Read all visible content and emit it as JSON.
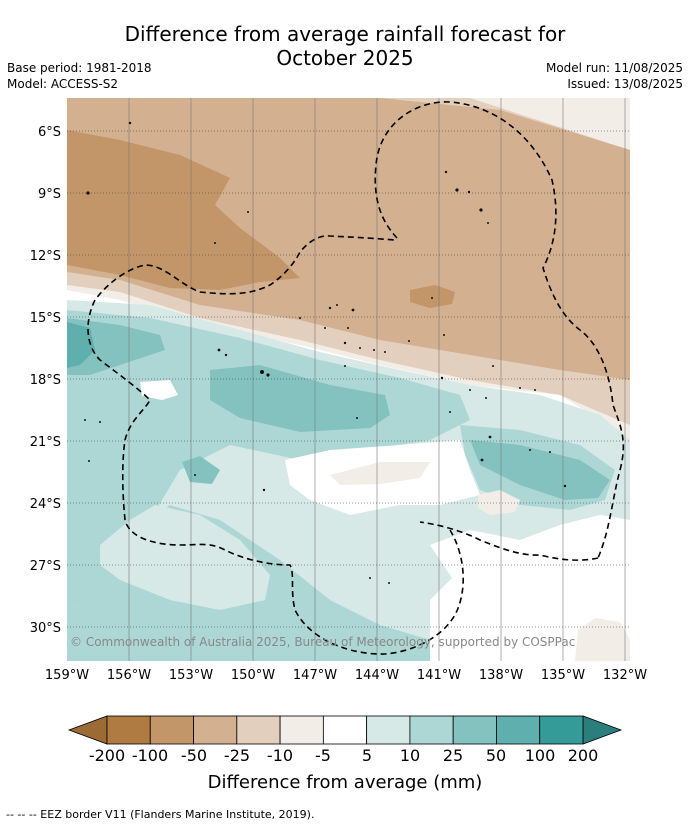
{
  "title": {
    "line1": "Difference from average rainfall forecast for",
    "line2": "October 2025"
  },
  "meta": {
    "base_period": "Base period: 1981-2018",
    "model": "Model: ACCESS-S2",
    "model_run": "Model run: 11/08/2025",
    "issued": "Issued: 13/08/2025"
  },
  "map": {
    "lon_labels": [
      "159°W",
      "156°W",
      "153°W",
      "150°W",
      "147°W",
      "144°W",
      "141°W",
      "138°W",
      "135°W",
      "132°W"
    ],
    "lat_labels": [
      "6°S",
      "9°S",
      "12°S",
      "15°S",
      "18°S",
      "21°S",
      "24°S",
      "27°S",
      "30°S"
    ],
    "copyright": "© Commonwealth of Australia 2025, Bureau of Meteorology, supported by COSPPac",
    "eez_border_style": "dashed-black"
  },
  "colorbar": {
    "ticks": [
      "-200",
      "-100",
      "-50",
      "-25",
      "-10",
      "-5",
      "5",
      "10",
      "25",
      "50",
      "100",
      "200"
    ],
    "colors": [
      "#9c6a35",
      "#b07a43",
      "#c29669",
      "#d3b090",
      "#e3cfbd",
      "#f2ede6",
      "#ffffff",
      "#d6e9e7",
      "#add7d5",
      "#84c2c0",
      "#5eafad",
      "#359b98",
      "#2a7f7c"
    ],
    "label": "Difference from average (mm)"
  },
  "footer": {
    "legend_text": "--  --  -- EEZ border V11 (Flanders Marine Institute, 2019)."
  }
}
